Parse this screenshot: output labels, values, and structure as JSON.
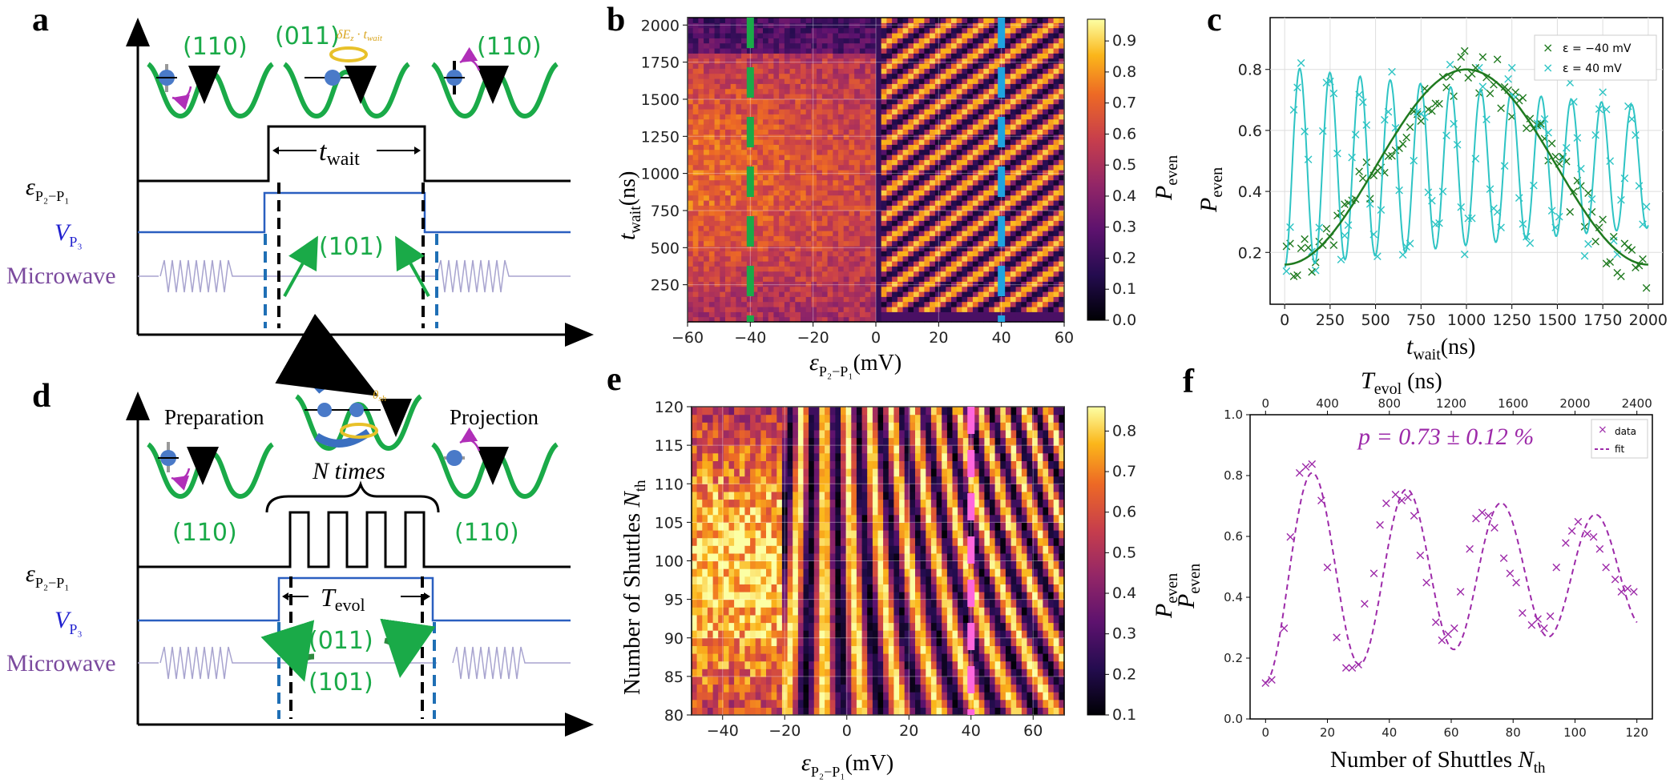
{
  "panel_labels": {
    "a": "a",
    "b": "b",
    "c": "c",
    "d": "d",
    "e": "e",
    "f": "f"
  },
  "colors": {
    "green": "#1aaa48",
    "blue_v": "#2a5fc0",
    "purple_mw": "#7b4a9e",
    "magenta": "#9d2aa9",
    "cyan": "#2ec4c4",
    "darkgreen": "#1f7a1f",
    "pink": "#ff66dd",
    "sky": "#1fa4e0"
  },
  "panel_a": {
    "state_left": "(110)",
    "state_mid": "(011)",
    "state_right": "(110)",
    "phase_label": "δE",
    "phase_sub": "z",
    "phase_dot": " · t",
    "phase_sub2": "wait",
    "pulse_label": "t",
    "pulse_sub": "wait",
    "center_state": "(101)",
    "eps_label": "ε",
    "eps_sub": "P₂−P₁",
    "v_label": "V",
    "v_sub": "P₃",
    "mw_label": "Microwave"
  },
  "panel_d": {
    "prep": "Preparation",
    "proj": "Projection",
    "theta": "θ",
    "theta_sub": "sh",
    "times": "N times",
    "state_left": "(110)",
    "state_right": "(110)",
    "pulse_label": "T",
    "pulse_sub": "evol",
    "state_top": "(011)",
    "state_bot": "(101)",
    "eps_label": "ε",
    "eps_sub": "P₂−P₁",
    "v_label": "V",
    "v_sub": "P₃",
    "mw_label": "Microwave"
  },
  "chart_data": [
    {
      "id": "b",
      "type": "heatmap",
      "xlabel": "ε",
      "xlabel_sub": "P₂−P₁",
      "xlabel_unit": "(mV)",
      "ylabel": "t",
      "ylabel_sub": "wait",
      "ylabel_unit": "(ns)",
      "xlim": [
        -60,
        60
      ],
      "ylim": [
        0,
        2050
      ],
      "xticks": [
        "−60",
        "−40",
        "−20",
        "0",
        "20",
        "40",
        "60"
      ],
      "yticks": [
        "250",
        "500",
        "750",
        "1000",
        "1250",
        "1500",
        "1750",
        "2000"
      ],
      "colorbar": {
        "label": "P",
        "label_sub": "even",
        "range": [
          0,
          0.97
        ],
        "ticks": [
          "0.0",
          "0.1",
          "0.2",
          "0.3",
          "0.4",
          "0.5",
          "0.6",
          "0.7",
          "0.8",
          "0.9"
        ]
      },
      "markers": [
        {
          "x": -40,
          "color": "green"
        },
        {
          "x": 40,
          "color": "sky"
        }
      ]
    },
    {
      "id": "c",
      "type": "scatter",
      "xlabel": "t",
      "xlabel_sub": "wait",
      "xlabel_unit": "(ns)",
      "ylabel": "P",
      "ylabel_sub": "even",
      "xlim": [
        -80,
        2080
      ],
      "ylim": [
        0.03,
        0.97
      ],
      "xticks": [
        "0",
        "250",
        "500",
        "750",
        "1000",
        "1250",
        "1500",
        "1750",
        "2000"
      ],
      "yticks": [
        "0.2",
        "0.4",
        "0.6",
        "0.8"
      ],
      "legend": [
        "ε = −40 mV",
        "ε = 40 mV"
      ],
      "series": [
        {
          "name": "ε = −40 mV",
          "color": "darkgreen",
          "fit": {
            "offset": 0.48,
            "amp": 0.32,
            "period_ns": 2000,
            "center_ns": 1000
          }
        },
        {
          "name": "ε = 40 mV",
          "color": "cyan",
          "fit": {
            "offset": 0.48,
            "amp": 0.33,
            "period_ns": 166,
            "phase_ns": 83
          }
        }
      ]
    },
    {
      "id": "e",
      "type": "heatmap",
      "xlabel": "ε",
      "xlabel_sub": "P₂−P₁",
      "xlabel_unit": "(mV)",
      "ylabel": "Number of Shuttles ",
      "ylabel_n": "N",
      "ylabel_sub": "th",
      "xlim": [
        -50,
        70
      ],
      "ylim": [
        80,
        120
      ],
      "xticks": [
        "−40",
        "−20",
        "0",
        "20",
        "40",
        "60"
      ],
      "yticks": [
        "80",
        "85",
        "90",
        "95",
        "100",
        "105",
        "110",
        "115",
        "120"
      ],
      "colorbar": {
        "label": "P",
        "label_sub": "even",
        "range": [
          0.1,
          0.86
        ],
        "ticks": [
          "0.1",
          "0.2",
          "0.3",
          "0.4",
          "0.5",
          "0.6",
          "0.7",
          "0.8"
        ]
      },
      "markers": [
        {
          "x": 40,
          "color": "pink"
        }
      ]
    },
    {
      "id": "f",
      "type": "scatter",
      "xlabel": "Number of Shuttles ",
      "xlabel_n": "N",
      "xlabel_sub": "th",
      "ylabel": "P",
      "ylabel_sub": "even",
      "top_label": "T",
      "top_label_sub": "evol",
      "top_unit": " (ns)",
      "xlim": [
        -5,
        125
      ],
      "ylim": [
        0,
        1.0
      ],
      "xticks": [
        "0",
        "20",
        "40",
        "60",
        "80",
        "100",
        "120"
      ],
      "top_ticks": [
        "0",
        "400",
        "800",
        "1200",
        "1600",
        "2000",
        "2400"
      ],
      "yticks": [
        "0.0",
        "0.2",
        "0.4",
        "0.6",
        "0.8",
        "1.0"
      ],
      "annotation": "p = 0.73 ± 0.12 %",
      "legend": [
        "data",
        "fit"
      ],
      "series": [
        {
          "name": "data",
          "x": [
            0,
            2,
            6,
            8,
            11,
            13,
            15,
            18,
            20,
            23,
            26,
            28,
            30,
            32,
            35,
            37,
            39,
            42,
            44,
            46,
            48,
            50,
            52,
            55,
            57,
            59,
            61,
            63,
            66,
            68,
            70,
            72,
            74,
            77,
            79,
            81,
            83,
            86,
            88,
            90,
            92,
            94,
            97,
            99,
            101,
            104,
            106,
            108,
            110,
            113,
            115,
            117,
            119
          ],
          "y": [
            0.12,
            0.13,
            0.3,
            0.6,
            0.81,
            0.83,
            0.84,
            0.72,
            0.5,
            0.27,
            0.17,
            0.17,
            0.18,
            0.38,
            0.48,
            0.64,
            0.71,
            0.74,
            0.72,
            0.73,
            0.67,
            0.54,
            0.45,
            0.32,
            0.26,
            0.28,
            0.3,
            0.42,
            0.56,
            0.66,
            0.68,
            0.67,
            0.63,
            0.53,
            0.48,
            0.45,
            0.35,
            0.31,
            0.33,
            0.3,
            0.34,
            0.5,
            0.58,
            0.62,
            0.65,
            0.61,
            0.6,
            0.56,
            0.5,
            0.46,
            0.42,
            0.43,
            0.42
          ]
        }
      ]
    }
  ]
}
